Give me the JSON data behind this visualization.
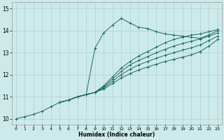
{
  "xlabel": "Humidex (Indice chaleur)",
  "bg_color": "#cdeaea",
  "line_color": "#1a6b5a",
  "grid_color": "#b0d0d0",
  "xlim": [
    -0.5,
    23.5
  ],
  "ylim": [
    9.75,
    15.3
  ],
  "xticks": [
    0,
    1,
    2,
    3,
    4,
    5,
    6,
    7,
    8,
    9,
    10,
    11,
    12,
    13,
    14,
    15,
    16,
    17,
    18,
    19,
    20,
    21,
    22,
    23
  ],
  "yticks": [
    10,
    11,
    12,
    13,
    14,
    15
  ],
  "lines": [
    {
      "x": [
        0,
        1,
        2,
        3,
        4,
        5,
        6,
        7,
        8,
        9,
        10,
        11,
        12,
        13,
        14,
        15,
        16,
        17,
        18,
        19,
        20,
        21,
        22,
        23
      ],
      "y": [
        10.0,
        10.1,
        10.2,
        10.35,
        10.55,
        10.75,
        10.85,
        11.0,
        11.1,
        13.2,
        13.9,
        14.25,
        14.55,
        14.35,
        14.15,
        14.1,
        13.95,
        13.85,
        13.8,
        13.75,
        13.7,
        13.65,
        13.8,
        14.0
      ]
    },
    {
      "x": [
        5,
        6,
        7,
        8,
        9,
        10,
        11,
        12,
        13,
        14,
        15,
        16,
        17,
        18,
        19,
        20,
        21,
        22,
        23
      ],
      "y": [
        10.75,
        10.85,
        11.0,
        11.1,
        11.2,
        11.5,
        11.9,
        12.3,
        12.6,
        12.85,
        13.05,
        13.25,
        13.45,
        13.6,
        13.7,
        13.8,
        13.85,
        13.95,
        14.05
      ]
    },
    {
      "x": [
        5,
        6,
        7,
        8,
        9,
        10,
        11,
        12,
        13,
        14,
        15,
        16,
        17,
        18,
        19,
        20,
        21,
        22,
        23
      ],
      "y": [
        10.75,
        10.85,
        11.0,
        11.1,
        11.2,
        11.45,
        11.8,
        12.15,
        12.45,
        12.65,
        12.82,
        13.0,
        13.15,
        13.3,
        13.42,
        13.52,
        13.62,
        13.75,
        13.9
      ]
    },
    {
      "x": [
        5,
        6,
        7,
        8,
        9,
        10,
        11,
        12,
        13,
        14,
        15,
        16,
        17,
        18,
        19,
        20,
        21,
        22,
        23
      ],
      "y": [
        10.75,
        10.85,
        11.0,
        11.1,
        11.2,
        11.4,
        11.7,
        12.0,
        12.25,
        12.45,
        12.6,
        12.75,
        12.88,
        13.0,
        13.12,
        13.22,
        13.35,
        13.55,
        13.75
      ]
    },
    {
      "x": [
        5,
        6,
        7,
        8,
        9,
        10,
        11,
        12,
        13,
        14,
        15,
        16,
        17,
        18,
        19,
        20,
        21,
        22,
        23
      ],
      "y": [
        10.75,
        10.85,
        11.0,
        11.1,
        11.2,
        11.35,
        11.6,
        11.85,
        12.05,
        12.22,
        12.35,
        12.48,
        12.6,
        12.7,
        12.8,
        12.9,
        13.05,
        13.3,
        13.6
      ]
    }
  ]
}
